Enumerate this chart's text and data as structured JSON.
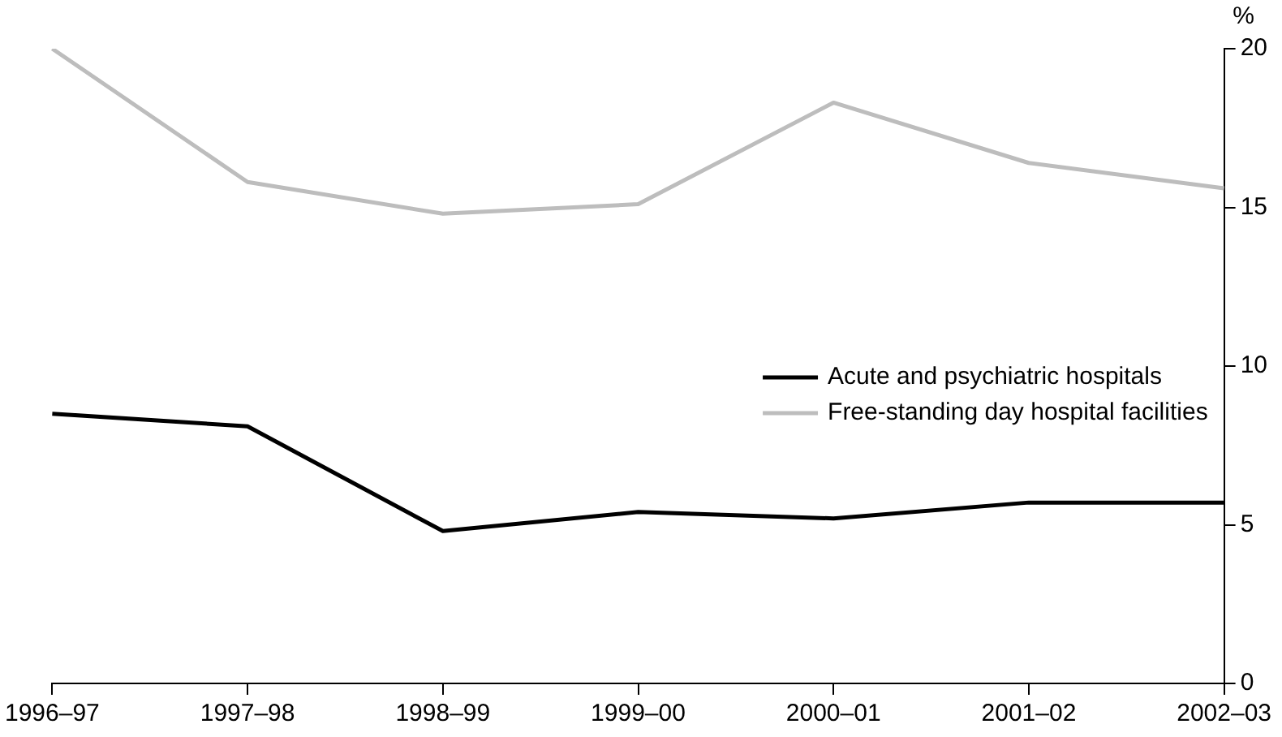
{
  "chart_data": {
    "type": "line",
    "ylabel": "%",
    "categories": [
      "1996–97",
      "1997–98",
      "1998–99",
      "1999–00",
      "2000–01",
      "2001–02",
      "2002–03"
    ],
    "series": [
      {
        "name": "Acute and psychiatric hospitals",
        "color": "#000000",
        "values": [
          8.5,
          8.1,
          4.8,
          5.4,
          5.2,
          5.7,
          5.7
        ]
      },
      {
        "name": "Free-standing day hospital facilities",
        "color": "#bdbdbd",
        "values": [
          20.0,
          15.8,
          14.8,
          15.1,
          18.3,
          16.4,
          15.6
        ]
      }
    ],
    "ylim": [
      0,
      20
    ],
    "yticks": [
      0,
      5,
      10,
      15,
      20
    ],
    "grid": false,
    "legend": "right",
    "marker": "none",
    "line_style": "solid"
  }
}
